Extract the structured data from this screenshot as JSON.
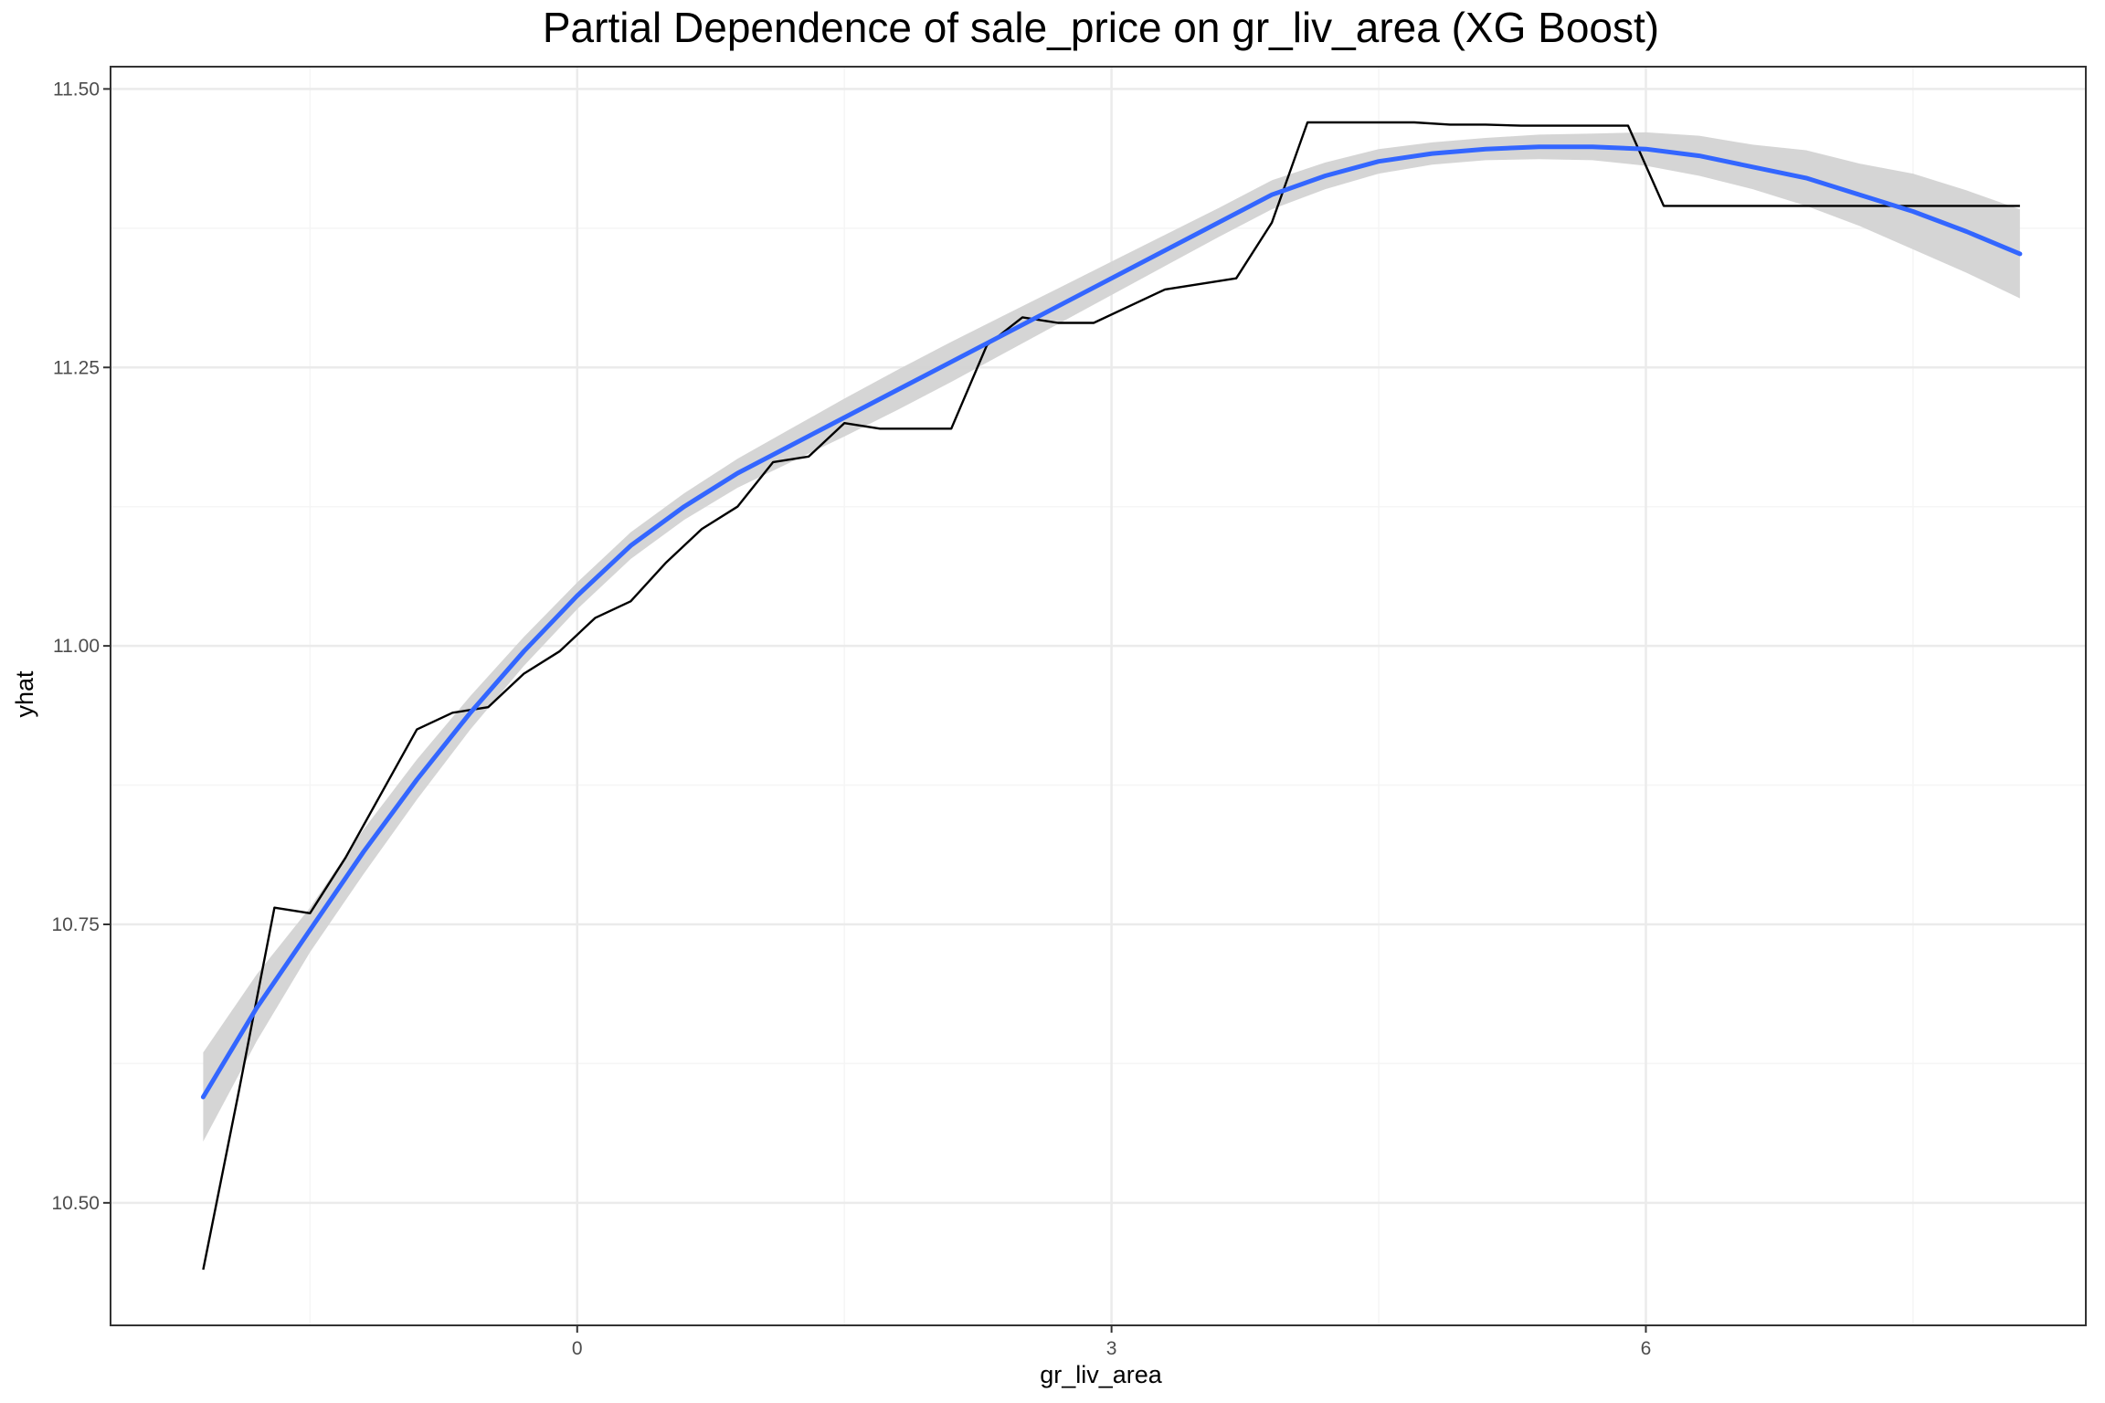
{
  "chart_data": {
    "type": "line",
    "title": "Partial Dependence of sale_price on gr_liv_area (XG Boost)",
    "xlabel": "gr_liv_area",
    "ylabel": "yhat",
    "xlim": [
      -2.62,
      8.47
    ],
    "ylim": [
      10.39,
      11.52
    ],
    "x_ticks": [
      0,
      3,
      6
    ],
    "x_tick_labels": [
      "0",
      "3",
      "6"
    ],
    "y_ticks": [
      10.5,
      10.75,
      11.0,
      11.25,
      11.5
    ],
    "y_tick_labels": [
      "10.50",
      "10.75",
      "11.00",
      "11.25",
      "11.50"
    ],
    "grid": true,
    "colors": {
      "pd_line": "#000000",
      "smooth_line": "#3366FF",
      "ribbon": "#D3D3D3",
      "grid_major": "#EBEBEB",
      "grid_minor": "#F5F5F5",
      "panel_border": "#333333"
    },
    "series": [
      {
        "x": [
          -2.1,
          -1.9,
          -1.7,
          -1.5,
          -1.3,
          -0.9,
          -0.7,
          -0.5,
          -0.3,
          -0.1,
          0.1,
          0.3,
          0.5,
          0.7,
          0.9,
          1.1,
          1.3,
          1.5,
          1.7,
          1.9,
          2.1,
          2.3,
          2.5,
          2.7,
          2.9,
          3.1,
          3.3,
          3.5,
          3.7,
          3.9,
          4.1,
          4.3,
          4.5,
          4.7,
          4.9,
          5.1,
          5.3,
          5.5,
          5.7,
          5.9,
          6.1,
          6.5,
          7.0,
          7.5,
          8.0,
          8.1
        ],
        "y": [
          10.44,
          10.6,
          10.765,
          10.76,
          10.81,
          10.925,
          10.94,
          10.945,
          10.975,
          10.995,
          11.025,
          11.04,
          11.075,
          11.105,
          11.125,
          11.165,
          11.17,
          11.2,
          11.195,
          11.195,
          11.195,
          11.27,
          11.295,
          11.29,
          11.29,
          11.305,
          11.32,
          11.325,
          11.33,
          11.38,
          11.47,
          11.47,
          11.47,
          11.47,
          11.468,
          11.468,
          11.467,
          11.467,
          11.467,
          11.467,
          11.395,
          11.395,
          11.395,
          11.395,
          11.395,
          11.395
        ]
      },
      {
        "x": [
          -2.1,
          -1.8,
          -1.5,
          -1.2,
          -0.9,
          -0.6,
          -0.3,
          0.0,
          0.3,
          0.6,
          0.9,
          1.2,
          1.5,
          1.8,
          2.1,
          2.4,
          2.7,
          3.0,
          3.3,
          3.6,
          3.9,
          4.2,
          4.5,
          4.8,
          5.1,
          5.4,
          5.7,
          6.0,
          6.3,
          6.6,
          6.9,
          7.2,
          7.5,
          7.8,
          8.1
        ],
        "y": [
          10.595,
          10.675,
          10.745,
          10.815,
          10.88,
          10.94,
          10.995,
          11.045,
          11.09,
          11.125,
          11.155,
          11.18,
          11.205,
          11.23,
          11.255,
          11.28,
          11.305,
          11.33,
          11.355,
          11.38,
          11.405,
          11.422,
          11.435,
          11.442,
          11.446,
          11.448,
          11.448,
          11.446,
          11.44,
          11.43,
          11.42,
          11.405,
          11.39,
          11.372,
          11.352
        ],
        "lower": [
          10.555,
          10.645,
          10.725,
          10.795,
          10.862,
          10.925,
          10.982,
          11.033,
          11.078,
          11.113,
          11.142,
          11.165,
          11.188,
          11.212,
          11.237,
          11.263,
          11.289,
          11.315,
          11.341,
          11.367,
          11.392,
          11.41,
          11.424,
          11.432,
          11.436,
          11.437,
          11.436,
          11.431,
          11.422,
          11.41,
          11.395,
          11.377,
          11.356,
          11.335,
          11.312
        ],
        "upper": [
          10.635,
          10.705,
          10.765,
          10.835,
          10.898,
          10.955,
          11.008,
          11.057,
          11.102,
          11.137,
          11.168,
          11.195,
          11.222,
          11.248,
          11.273,
          11.297,
          11.321,
          11.345,
          11.369,
          11.393,
          11.418,
          11.434,
          11.446,
          11.452,
          11.456,
          11.459,
          11.46,
          11.461,
          11.458,
          11.45,
          11.445,
          11.433,
          11.424,
          11.409,
          11.392
        ]
      }
    ]
  }
}
